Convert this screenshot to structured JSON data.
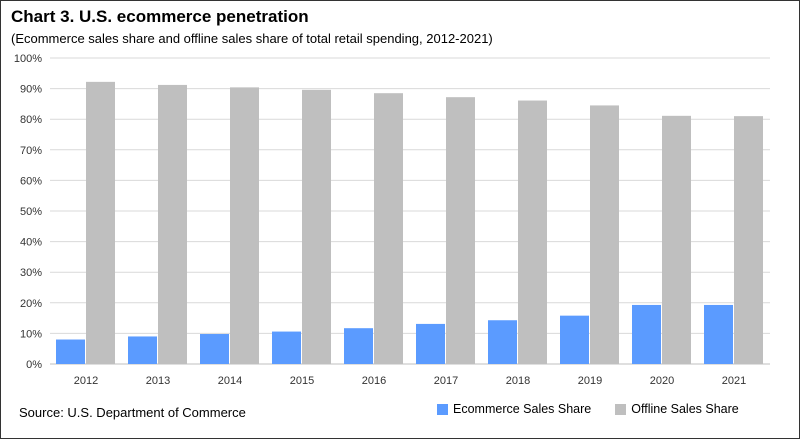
{
  "chart_data": {
    "type": "bar",
    "title": "Chart 3. U.S. ecommerce penetration",
    "subtitle": "(Ecommerce sales share and offline sales share of total retail spending, 2012-2021)",
    "source": "Source: U.S. Department of Commerce",
    "categories": [
      "2012",
      "2013",
      "2014",
      "2015",
      "2016",
      "2017",
      "2018",
      "2019",
      "2020",
      "2021"
    ],
    "series": [
      {
        "name": "Ecommerce Sales Share",
        "color": "#5b9bff",
        "values": [
          8,
          9,
          9.8,
          10.6,
          11.7,
          13.1,
          14.3,
          15.8,
          19.3,
          19.3
        ]
      },
      {
        "name": "Offline Sales Share",
        "color": "#bfbfbf",
        "values": [
          92.2,
          91.2,
          90.4,
          89.6,
          88.5,
          87.2,
          86.1,
          84.5,
          81.1,
          81
        ]
      }
    ],
    "yticks": [
      "0%",
      "10%",
      "20%",
      "30%",
      "40%",
      "50%",
      "60%",
      "70%",
      "80%",
      "90%",
      "100%"
    ],
    "ylim": [
      0,
      100
    ],
    "xlabel": "",
    "ylabel": "",
    "grid": true,
    "legend": "bottom-right"
  }
}
